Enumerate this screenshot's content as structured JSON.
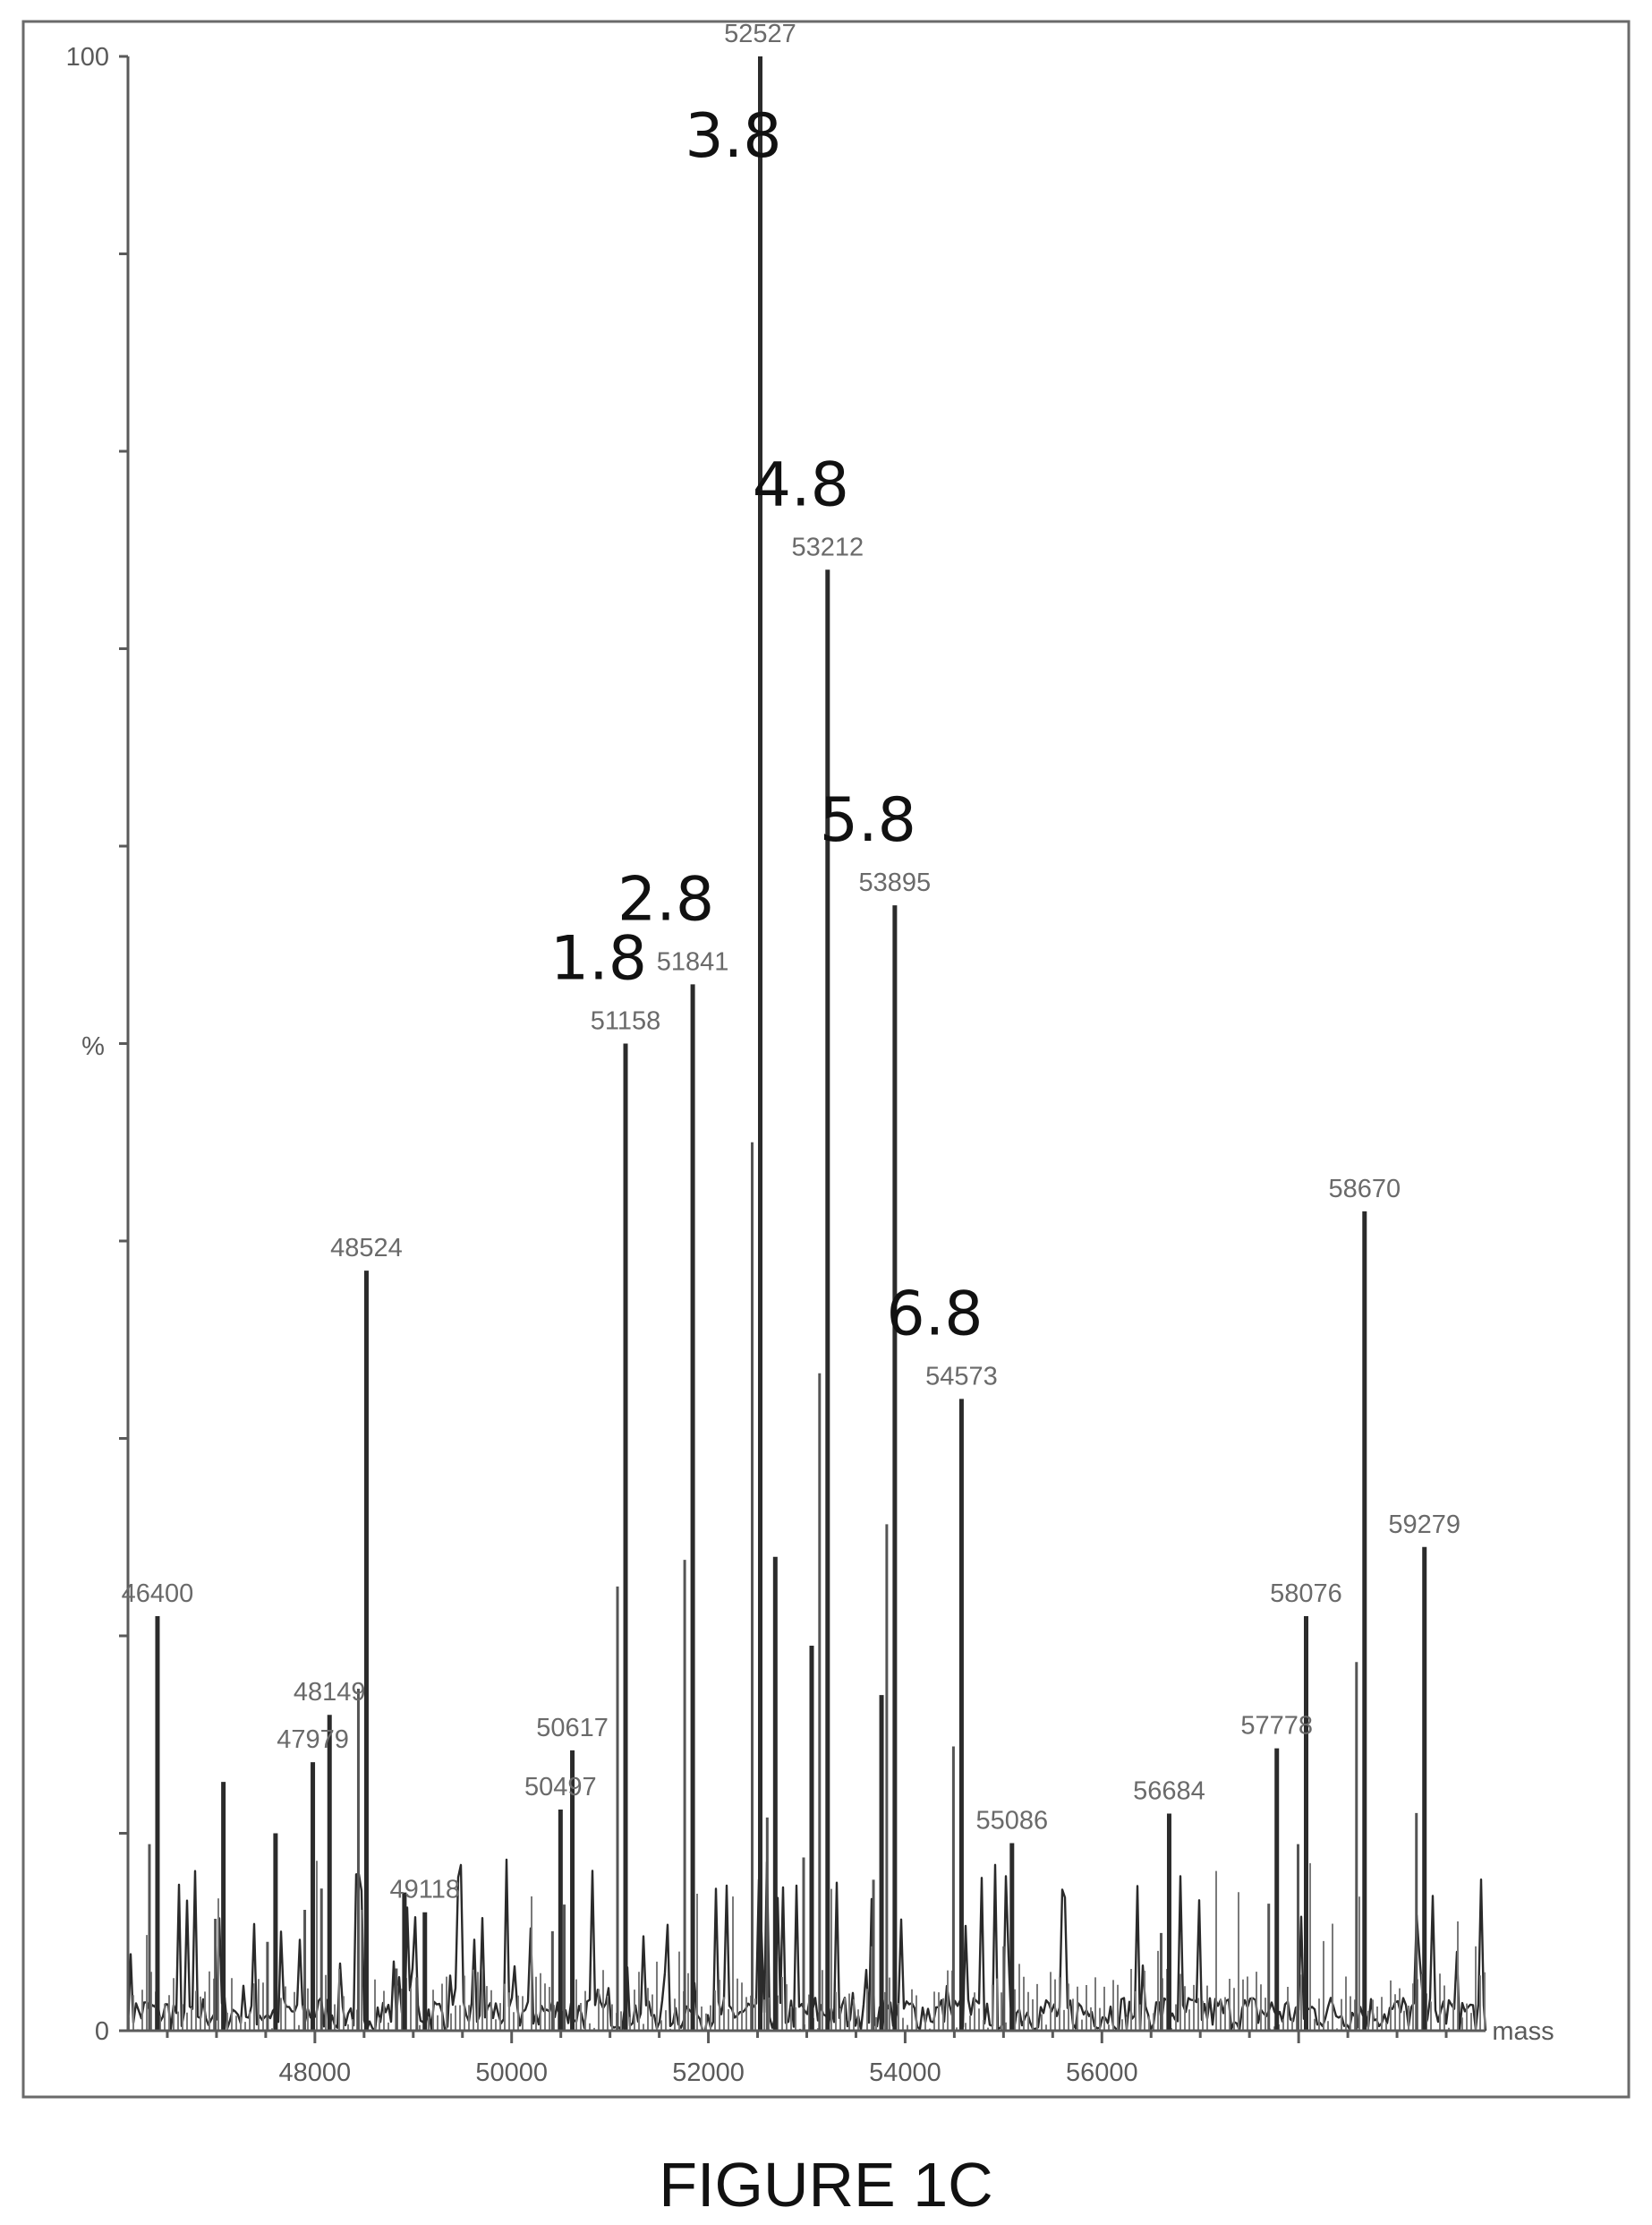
{
  "caption": "FIGURE 1C",
  "chart_data": {
    "type": "line",
    "title": "",
    "xlabel": "mass",
    "ylabel": "%",
    "xlim": [
      46100,
      59900
    ],
    "ylim": [
      0,
      100
    ],
    "x_ticks": [
      48000,
      50000,
      52000,
      54000,
      56000
    ],
    "y_ticks": [
      0,
      100
    ],
    "grid": false,
    "peaks": [
      {
        "x": 46400,
        "y": 21.0,
        "label": "46400"
      },
      {
        "x": 47070,
        "y": 12.6,
        "label": ""
      },
      {
        "x": 47600,
        "y": 10.0,
        "label": ""
      },
      {
        "x": 47979,
        "y": 13.6,
        "label": "47979"
      },
      {
        "x": 48149,
        "y": 16.0,
        "label": "48149"
      },
      {
        "x": 48524,
        "y": 38.5,
        "label": "48524"
      },
      {
        "x": 48910,
        "y": 7.0,
        "label": ""
      },
      {
        "x": 49118,
        "y": 6.0,
        "label": "49118"
      },
      {
        "x": 50497,
        "y": 11.2,
        "label": "50497"
      },
      {
        "x": 50617,
        "y": 14.2,
        "label": "50617"
      },
      {
        "x": 51158,
        "y": 50.0,
        "label": "51158"
      },
      {
        "x": 51841,
        "y": 53.0,
        "label": "51841"
      },
      {
        "x": 52527,
        "y": 100.0,
        "label": "52527"
      },
      {
        "x": 52680,
        "y": 24.0,
        "label": ""
      },
      {
        "x": 53050,
        "y": 19.5,
        "label": ""
      },
      {
        "x": 53212,
        "y": 74.0,
        "label": "53212"
      },
      {
        "x": 53760,
        "y": 17.0,
        "label": ""
      },
      {
        "x": 53895,
        "y": 57.0,
        "label": "53895"
      },
      {
        "x": 54573,
        "y": 32.0,
        "label": "54573"
      },
      {
        "x": 55086,
        "y": 9.5,
        "label": "55086"
      },
      {
        "x": 56684,
        "y": 11.0,
        "label": "56684"
      },
      {
        "x": 57778,
        "y": 14.3,
        "label": "57778"
      },
      {
        "x": 58076,
        "y": 21.0,
        "label": "58076"
      },
      {
        "x": 58670,
        "y": 41.5,
        "label": "58670"
      },
      {
        "x": 59279,
        "y": 24.5,
        "label": "59279"
      }
    ],
    "annotations": [
      {
        "text": "1.8",
        "x": 51158
      },
      {
        "text": "2.8",
        "x": 51841
      },
      {
        "text": "3.8",
        "x": 52527
      },
      {
        "text": "4.8",
        "x": 53212
      },
      {
        "text": "5.8",
        "x": 53895
      },
      {
        "text": "6.8",
        "x": 54573
      }
    ]
  }
}
